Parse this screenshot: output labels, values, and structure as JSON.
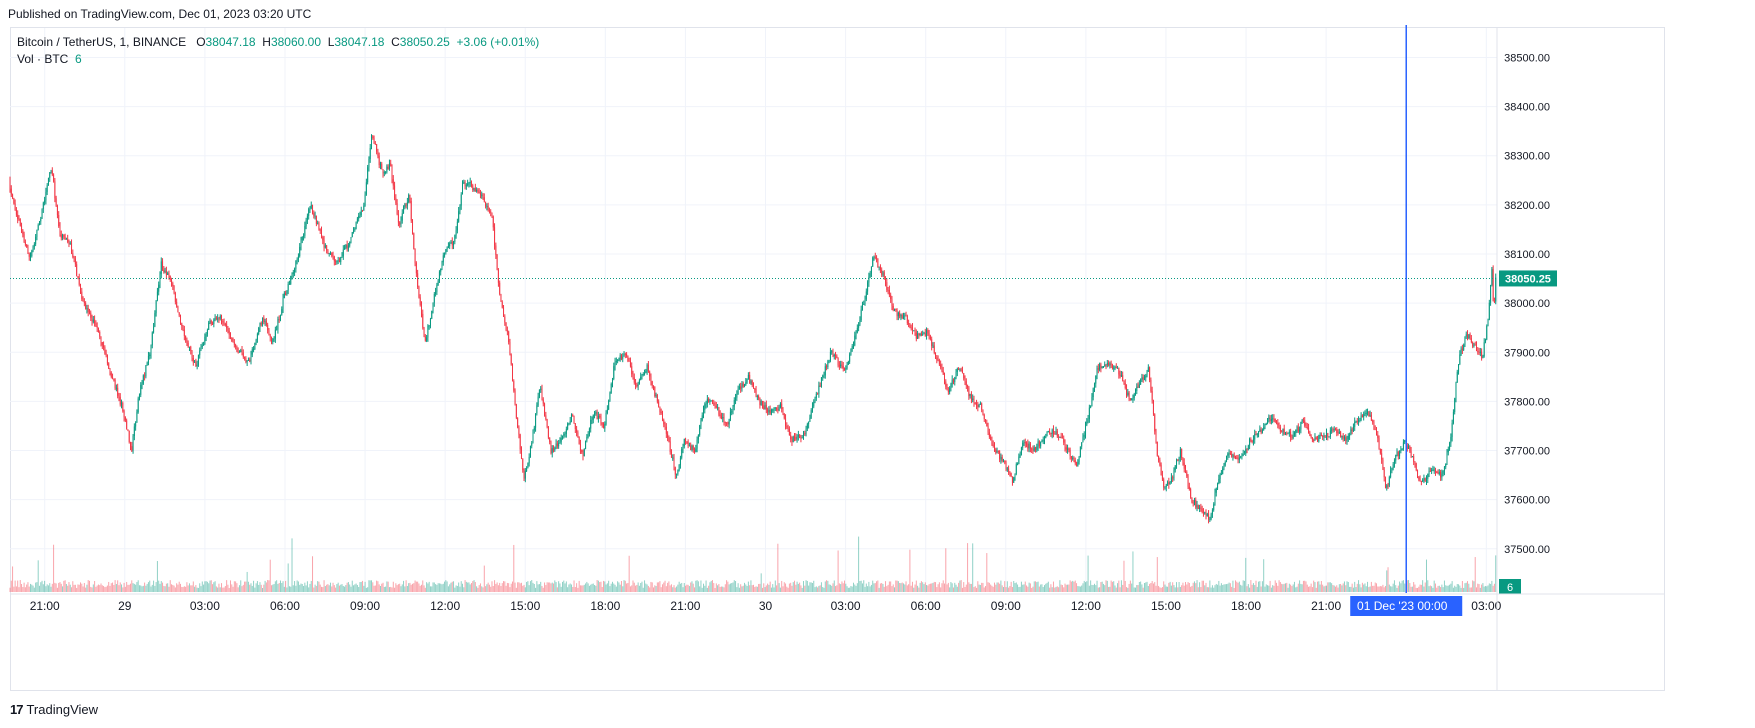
{
  "header": {
    "published": "Published on TradingView.com, Dec 01, 2023 03:20 UTC"
  },
  "legend": {
    "symbol": "Bitcoin / TetherUS, 1, BINANCE",
    "open_label": "O",
    "open": "38047.18",
    "high_label": "H",
    "high": "38060.00",
    "low_label": "L",
    "low": "38047.18",
    "close_label": "C",
    "close": "38050.25",
    "change": "+3.06 (+0.01%)"
  },
  "vol_legend": {
    "label": "Vol · BTC",
    "value": "6"
  },
  "footer": {
    "logo_glyph": "17",
    "brand": "TradingView"
  },
  "colors": {
    "up": "#089981",
    "down": "#f23645",
    "crosshair": "#2962ff",
    "grid": "#f0f3fa"
  },
  "chart_data": {
    "type": "candlestick",
    "title": "",
    "symbol": "Bitcoin / TetherUS",
    "interval": "1",
    "exchange": "BINANCE",
    "y_axis": {
      "ticks": [
        "37500.00",
        "37600.00",
        "37700.00",
        "37800.00",
        "37900.00",
        "38000.00",
        "38100.00",
        "38200.00",
        "38300.00",
        "38400.00",
        "38500.00"
      ],
      "range": [
        37410,
        38560
      ]
    },
    "x_axis": {
      "ticks": [
        {
          "label": "21:00",
          "h": 21
        },
        {
          "label": "29",
          "h": 24
        },
        {
          "label": "03:00",
          "h": 27
        },
        {
          "label": "06:00",
          "h": 30
        },
        {
          "label": "09:00",
          "h": 33
        },
        {
          "label": "12:00",
          "h": 36
        },
        {
          "label": "15:00",
          "h": 39
        },
        {
          "label": "18:00",
          "h": 42
        },
        {
          "label": "21:00",
          "h": 45
        },
        {
          "label": "30",
          "h": 48
        },
        {
          "label": "03:00",
          "h": 51
        },
        {
          "label": "06:00",
          "h": 54
        },
        {
          "label": "09:00",
          "h": 57
        },
        {
          "label": "12:00",
          "h": 60
        },
        {
          "label": "15:00",
          "h": 63
        },
        {
          "label": "18:00",
          "h": 66
        },
        {
          "label": "21:00",
          "h": 69
        },
        {
          "label": "03:00",
          "h": 75
        }
      ],
      "range_hours": [
        19.7,
        75.4
      ]
    },
    "crosshair": {
      "label": "01 Dec '23   00:00",
      "h": 72
    },
    "last_price": {
      "value": 38050.25,
      "label": "38050.25"
    },
    "volume_last": {
      "label": "6"
    },
    "price_path": [
      [
        19.7,
        38250
      ],
      [
        20.0,
        38180
      ],
      [
        20.5,
        38090
      ],
      [
        21.0,
        38200
      ],
      [
        21.3,
        38280
      ],
      [
        21.6,
        38140
      ],
      [
        22.0,
        38120
      ],
      [
        22.5,
        38000
      ],
      [
        23.0,
        37950
      ],
      [
        23.5,
        37860
      ],
      [
        24.0,
        37780
      ],
      [
        24.3,
        37700
      ],
      [
        24.6,
        37820
      ],
      [
        25.0,
        37900
      ],
      [
        25.4,
        38080
      ],
      [
        25.8,
        38040
      ],
      [
        26.2,
        37950
      ],
      [
        26.7,
        37870
      ],
      [
        27.2,
        37960
      ],
      [
        27.7,
        37970
      ],
      [
        28.2,
        37910
      ],
      [
        28.7,
        37880
      ],
      [
        29.2,
        37970
      ],
      [
        29.6,
        37920
      ],
      [
        30.0,
        38010
      ],
      [
        30.5,
        38090
      ],
      [
        31.0,
        38200
      ],
      [
        31.5,
        38120
      ],
      [
        32.0,
        38080
      ],
      [
        32.5,
        38130
      ],
      [
        33.0,
        38200
      ],
      [
        33.3,
        38350
      ],
      [
        33.7,
        38260
      ],
      [
        34.0,
        38280
      ],
      [
        34.3,
        38160
      ],
      [
        34.7,
        38220
      ],
      [
        35.0,
        38040
      ],
      [
        35.3,
        37920
      ],
      [
        35.7,
        38030
      ],
      [
        36.0,
        38100
      ],
      [
        36.4,
        38130
      ],
      [
        36.7,
        38240
      ],
      [
        37.0,
        38240
      ],
      [
        37.4,
        38220
      ],
      [
        37.8,
        38180
      ],
      [
        38.1,
        38010
      ],
      [
        38.4,
        37930
      ],
      [
        38.7,
        37780
      ],
      [
        39.0,
        37640
      ],
      [
        39.3,
        37720
      ],
      [
        39.6,
        37830
      ],
      [
        40.0,
        37700
      ],
      [
        40.4,
        37720
      ],
      [
        40.8,
        37770
      ],
      [
        41.2,
        37690
      ],
      [
        41.6,
        37780
      ],
      [
        42.0,
        37750
      ],
      [
        42.4,
        37880
      ],
      [
        42.8,
        37900
      ],
      [
        43.2,
        37830
      ],
      [
        43.6,
        37870
      ],
      [
        44.0,
        37800
      ],
      [
        44.4,
        37720
      ],
      [
        44.7,
        37650
      ],
      [
        45.0,
        37720
      ],
      [
        45.4,
        37700
      ],
      [
        45.8,
        37800
      ],
      [
        46.2,
        37790
      ],
      [
        46.6,
        37750
      ],
      [
        47.0,
        37820
      ],
      [
        47.4,
        37850
      ],
      [
        47.8,
        37800
      ],
      [
        48.2,
        37780
      ],
      [
        48.6,
        37790
      ],
      [
        49.0,
        37720
      ],
      [
        49.5,
        37730
      ],
      [
        50.0,
        37820
      ],
      [
        50.5,
        37900
      ],
      [
        51.0,
        37860
      ],
      [
        51.4,
        37930
      ],
      [
        51.8,
        38020
      ],
      [
        52.1,
        38100
      ],
      [
        52.5,
        38050
      ],
      [
        52.9,
        37980
      ],
      [
        53.3,
        37970
      ],
      [
        53.7,
        37930
      ],
      [
        54.1,
        37940
      ],
      [
        54.5,
        37880
      ],
      [
        54.9,
        37820
      ],
      [
        55.3,
        37870
      ],
      [
        55.7,
        37810
      ],
      [
        56.1,
        37790
      ],
      [
        56.5,
        37720
      ],
      [
        56.9,
        37680
      ],
      [
        57.3,
        37640
      ],
      [
        57.7,
        37720
      ],
      [
        58.1,
        37700
      ],
      [
        58.5,
        37730
      ],
      [
        58.9,
        37740
      ],
      [
        59.3,
        37710
      ],
      [
        59.7,
        37670
      ],
      [
        60.1,
        37760
      ],
      [
        60.5,
        37870
      ],
      [
        60.9,
        37880
      ],
      [
        61.3,
        37860
      ],
      [
        61.7,
        37800
      ],
      [
        62.1,
        37840
      ],
      [
        62.4,
        37870
      ],
      [
        62.7,
        37700
      ],
      [
        63.0,
        37620
      ],
      [
        63.3,
        37650
      ],
      [
        63.6,
        37700
      ],
      [
        64.0,
        37600
      ],
      [
        64.3,
        37580
      ],
      [
        64.7,
        37560
      ],
      [
        65.0,
        37640
      ],
      [
        65.4,
        37700
      ],
      [
        65.8,
        37680
      ],
      [
        66.2,
        37720
      ],
      [
        66.6,
        37740
      ],
      [
        67.0,
        37770
      ],
      [
        67.4,
        37740
      ],
      [
        67.8,
        37730
      ],
      [
        68.2,
        37760
      ],
      [
        68.6,
        37720
      ],
      [
        69.0,
        37730
      ],
      [
        69.4,
        37740
      ],
      [
        69.8,
        37720
      ],
      [
        70.2,
        37760
      ],
      [
        70.6,
        37780
      ],
      [
        71.0,
        37720
      ],
      [
        71.3,
        37620
      ],
      [
        71.6,
        37680
      ],
      [
        72.0,
        37720
      ],
      [
        72.3,
        37680
      ],
      [
        72.6,
        37630
      ],
      [
        73.0,
        37660
      ],
      [
        73.4,
        37650
      ],
      [
        73.7,
        37720
      ],
      [
        74.0,
        37880
      ],
      [
        74.3,
        37940
      ],
      [
        74.6,
        37910
      ],
      [
        74.9,
        37890
      ],
      [
        75.1,
        37960
      ],
      [
        75.25,
        38070
      ],
      [
        75.33,
        37980
      ],
      [
        75.4,
        38050
      ]
    ]
  }
}
